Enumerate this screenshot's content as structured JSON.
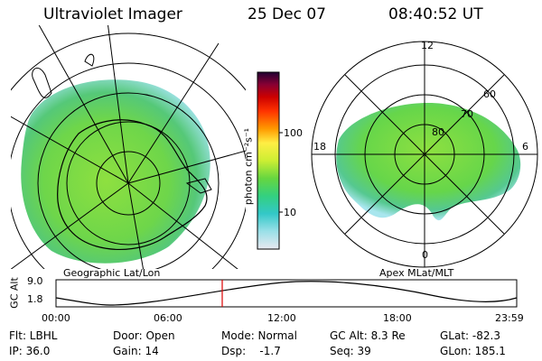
{
  "header": {
    "title": "Ultraviolet Imager",
    "date": "25 Dec 07",
    "time": "08:40:52 UT"
  },
  "left_panel": {
    "label": "Geographic Lat/Lon"
  },
  "right_panel": {
    "label": "Apex MLat/MLT",
    "mlt_labels": {
      "top": "12",
      "left": "18",
      "right": "6",
      "bottom": "0"
    },
    "lat_labels": [
      "60",
      "70",
      "80"
    ]
  },
  "colorbar": {
    "unit_label": "photon cm⁻²s⁻¹",
    "tick_labels": [
      "100",
      "10"
    ],
    "colors": [
      "#e8e8f0",
      "#9be0e8",
      "#33c8c8",
      "#33d080",
      "#66d640",
      "#99e033",
      "#ccee33",
      "#ffff44",
      "#ffcc22",
      "#ff8800",
      "#ff3300",
      "#dd0000",
      "#aa0033",
      "#660044",
      "#220033"
    ]
  },
  "altitude_plot": {
    "ylabel": "GC Alt",
    "ytick_top": "9.0",
    "ytick_bottom": "1.8",
    "xticks": [
      "00:00",
      "06:00",
      "12:00",
      "18:00",
      "23:59"
    ],
    "marker_color": "#dd0000"
  },
  "info": {
    "row1": [
      "Flt: LBHL",
      "Door: Open",
      "Mode: Normal",
      "GC Alt: 8.3 Re",
      "GLat: -82.3"
    ],
    "row2": [
      "IP: 36.0",
      "Gain: 14",
      "Dsp:    -1.7",
      "Seq: 39",
      "GLon: 185.1"
    ]
  }
}
